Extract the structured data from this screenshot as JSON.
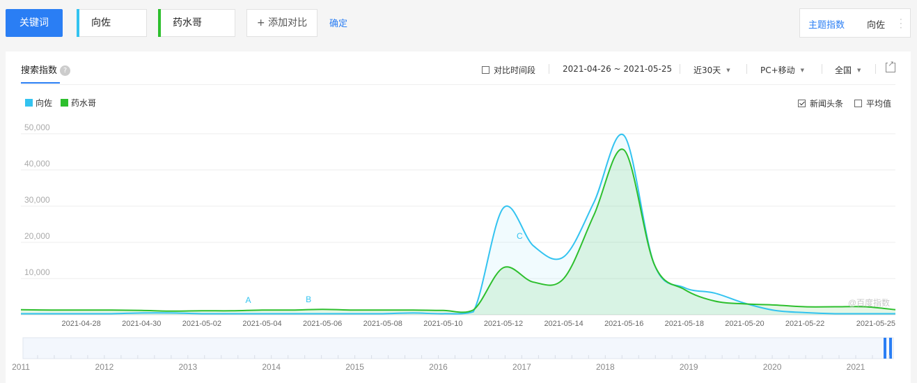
{
  "toolbar": {
    "keyword_tab": "关键词",
    "kw1": "向佐",
    "kw1_color": "#33c3f0",
    "kw2": "药水哥",
    "kw2_color": "#2dbf2d",
    "add_compare": "+ 添加对比",
    "confirm": "确定",
    "topic_index": "主题指数",
    "topic_keyword": "向佐"
  },
  "panel": {
    "tab_label": "搜索指数",
    "compare_period": "对比时间段",
    "date_range": "2021-04-26 ~ 2021-05-25",
    "period": "近30天",
    "device": "PC+移动",
    "region": "全国",
    "news_headlines": "新闻头条",
    "average": "平均值",
    "watermark": "@百度指数"
  },
  "chart_data": {
    "type": "area",
    "x": [
      "2021-04-26",
      "2021-04-27",
      "2021-04-28",
      "2021-04-29",
      "2021-04-30",
      "2021-05-01",
      "2021-05-02",
      "2021-05-03",
      "2021-05-04",
      "2021-05-05",
      "2021-05-06",
      "2021-05-07",
      "2021-05-08",
      "2021-05-09",
      "2021-05-10",
      "2021-05-11",
      "2021-05-12",
      "2021-05-13",
      "2021-05-14",
      "2021-05-15",
      "2021-05-16",
      "2021-05-17",
      "2021-05-18",
      "2021-05-19",
      "2021-05-20",
      "2021-05-21",
      "2021-05-22",
      "2021-05-23",
      "2021-05-24",
      "2021-05-25"
    ],
    "x_tick_labels": [
      "2021-04-28",
      "2021-04-30",
      "2021-05-02",
      "2021-05-04",
      "2021-05-06",
      "2021-05-08",
      "2021-05-10",
      "2021-05-12",
      "2021-05-14",
      "2021-05-16",
      "2021-05-18",
      "2021-05-20",
      "2021-05-22",
      "2021-05-25"
    ],
    "y_tick_labels": [
      "10,000",
      "20,000",
      "30,000",
      "40,000",
      "50,000"
    ],
    "ylim": [
      0,
      50000
    ],
    "series": [
      {
        "name": "向佐",
        "color": "#33c3f0",
        "values": [
          300,
          300,
          300,
          300,
          500,
          500,
          300,
          300,
          300,
          300,
          300,
          300,
          300,
          500,
          300,
          800,
          29500,
          19000,
          16000,
          31000,
          49500,
          14000,
          7500,
          6000,
          3200,
          1200,
          600,
          300,
          300,
          300
        ]
      },
      {
        "name": "药水哥",
        "color": "#2dbf2d",
        "values": [
          1400,
          1300,
          1300,
          1300,
          1200,
          1000,
          1100,
          1100,
          1300,
          1300,
          1500,
          1300,
          1300,
          1300,
          1200,
          1300,
          13000,
          9000,
          10000,
          27500,
          45500,
          14000,
          7000,
          3800,
          3000,
          2700,
          2200,
          2200,
          2200,
          1400
        ]
      }
    ],
    "annotations": [
      {
        "label": "A",
        "date": "2021-05-04"
      },
      {
        "label": "B",
        "date": "2021-05-06"
      },
      {
        "label": "C",
        "date": "2021-05-13"
      }
    ],
    "grid": true,
    "legend": "top-left"
  },
  "timeline": {
    "years": [
      "2011",
      "2012",
      "2013",
      "2014",
      "2015",
      "2016",
      "2017",
      "2018",
      "2019",
      "2020",
      "2021"
    ]
  }
}
